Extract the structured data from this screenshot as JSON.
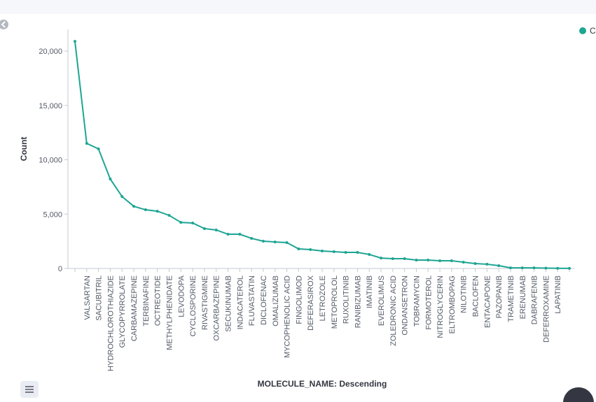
{
  "chart_data": {
    "type": "line",
    "color": "#1ea593",
    "x_label": "MOLECULE_NAME: Descending",
    "y_label": "Count",
    "legend": {
      "position": "top-right"
    },
    "series": [
      {
        "name": "C",
        "color": "#1ea593",
        "values": [
          20900,
          11510,
          11000,
          8230,
          6620,
          5720,
          5400,
          5270,
          4890,
          4240,
          4180,
          3670,
          3540,
          3150,
          3150,
          2770,
          2510,
          2440,
          2380,
          1800,
          1740,
          1610,
          1540,
          1480,
          1480,
          1290,
          960,
          900,
          900,
          770,
          770,
          710,
          710,
          580,
          450,
          390,
          260,
          60,
          60,
          60,
          30,
          20,
          10
        ]
      }
    ],
    "categories": [
      null,
      "VALSARTAN",
      "SACUBITRIL",
      "HYDROCHLOROTHIAZIDE",
      "GLYCOPYRROLATE",
      "CARBAMAZEPINE",
      "TERBINAFINE",
      "OCTREOTIDE",
      "METHYLPHENIDATE",
      "LEVODOPA",
      "CYCLOSPORINE",
      "RIVASTIGMINE",
      "OXCARBAZEPINE",
      "SECUKINUMAB",
      "INDACATEROL",
      "FLUVASTATIN",
      "DICLOFENAC",
      "OMALIZUMAB",
      "MYCOPHENOLIC ACID",
      "FINGOLIMOD",
      "DEFERASIROX",
      "LETROZOLE",
      "METOPROLOL",
      "RUXOLITINIB",
      "RANIBIZUMAB",
      "IMATINIB",
      "EVEROLIMUS",
      "ZOLEDRONIC ACID",
      "ONDANSETRON",
      "TOBRAMYCIN",
      "FORMOTEROL",
      "NITROGLYCERIN",
      "ELTROMBOPAG",
      "NILOTINIB",
      "BACLOFEN",
      "ENTACAPONE",
      "PAZOPANIB",
      "TRAMETINIB",
      "ERENUMAB",
      "DABRAFENIB",
      "DEFERROXAMINE",
      "LAPATINIB",
      null
    ],
    "ylim": [
      0,
      22000
    ],
    "yticks": [
      0,
      {
        "value": 5000,
        "label": "5,000"
      },
      {
        "value": 10000,
        "label": "10,000"
      },
      {
        "value": 15000,
        "label": "15,000"
      },
      {
        "value": 20000,
        "label": "20,000"
      }
    ],
    "grid": false
  }
}
